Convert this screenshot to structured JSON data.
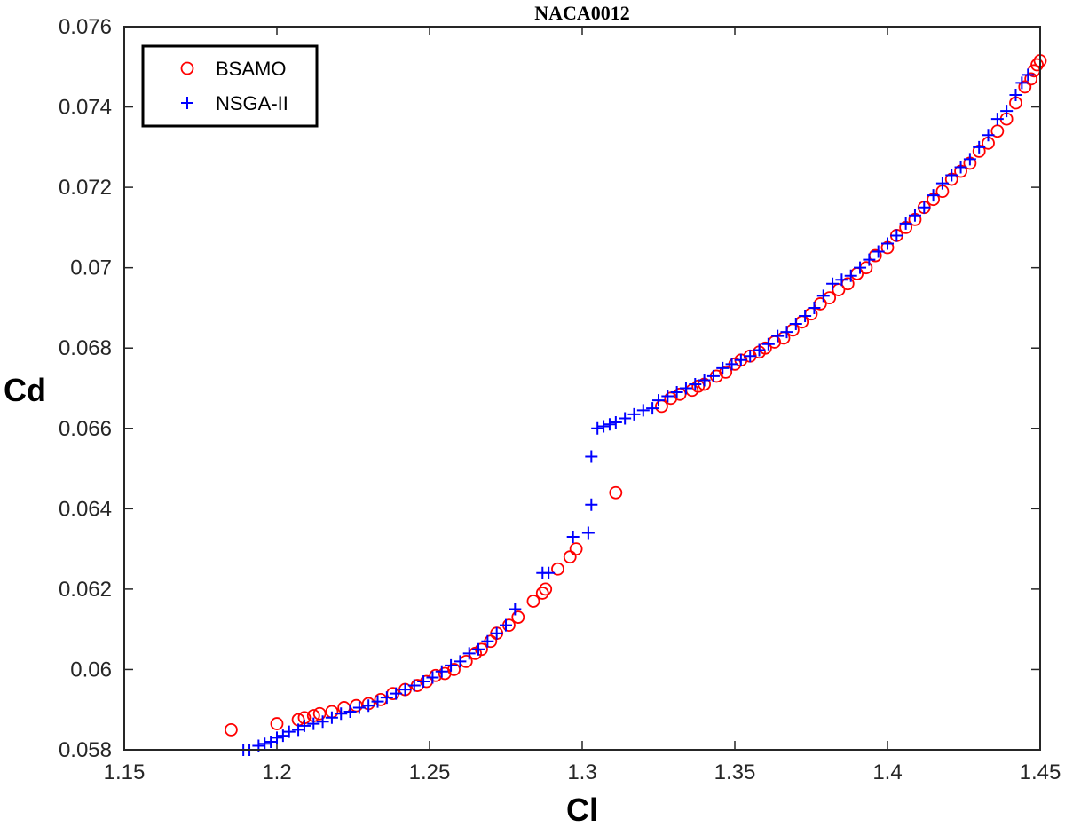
{
  "chart_data": {
    "type": "scatter",
    "title": "NACA0012",
    "xlabel": "Cl",
    "ylabel": "Cd",
    "xlim": [
      1.15,
      1.45
    ],
    "ylim": [
      0.058,
      0.076
    ],
    "xticks": [
      "1.15",
      "1.2",
      "1.25",
      "1.3",
      "1.35",
      "1.4",
      "1.45"
    ],
    "yticks": [
      "0.058",
      "0.06",
      "0.062",
      "0.064",
      "0.066",
      "0.068",
      "0.07",
      "0.072",
      "0.074",
      "0.076"
    ],
    "grid": false,
    "legend_position": "top-left",
    "series": [
      {
        "name": "BSAMO",
        "marker": "circle",
        "color": "#ff0000",
        "points": [
          [
            1.185,
            0.0585
          ],
          [
            1.2,
            0.05865
          ],
          [
            1.207,
            0.05875
          ],
          [
            1.209,
            0.0588
          ],
          [
            1.212,
            0.05885
          ],
          [
            1.214,
            0.0589
          ],
          [
            1.218,
            0.05895
          ],
          [
            1.222,
            0.05905
          ],
          [
            1.226,
            0.0591
          ],
          [
            1.23,
            0.05915
          ],
          [
            1.234,
            0.05925
          ],
          [
            1.238,
            0.0594
          ],
          [
            1.242,
            0.0595
          ],
          [
            1.246,
            0.0596
          ],
          [
            1.249,
            0.0597
          ],
          [
            1.252,
            0.05985
          ],
          [
            1.255,
            0.0599
          ],
          [
            1.258,
            0.06
          ],
          [
            1.262,
            0.0602
          ],
          [
            1.265,
            0.0604
          ],
          [
            1.267,
            0.0605
          ],
          [
            1.27,
            0.0607
          ],
          [
            1.272,
            0.0609
          ],
          [
            1.276,
            0.0611
          ],
          [
            1.279,
            0.0613
          ],
          [
            1.284,
            0.0617
          ],
          [
            1.287,
            0.0619
          ],
          [
            1.288,
            0.062
          ],
          [
            1.292,
            0.0625
          ],
          [
            1.296,
            0.0628
          ],
          [
            1.298,
            0.063
          ],
          [
            1.311,
            0.0644
          ],
          [
            1.326,
            0.06655
          ],
          [
            1.329,
            0.06675
          ],
          [
            1.332,
            0.06685
          ],
          [
            1.336,
            0.06695
          ],
          [
            1.338,
            0.06705
          ],
          [
            1.34,
            0.0671
          ],
          [
            1.344,
            0.0673
          ],
          [
            1.347,
            0.0674
          ],
          [
            1.35,
            0.0676
          ],
          [
            1.352,
            0.0677
          ],
          [
            1.355,
            0.0678
          ],
          [
            1.358,
            0.0679
          ],
          [
            1.36,
            0.068
          ],
          [
            1.363,
            0.06815
          ],
          [
            1.366,
            0.06825
          ],
          [
            1.369,
            0.06845
          ],
          [
            1.372,
            0.06865
          ],
          [
            1.375,
            0.06885
          ],
          [
            1.378,
            0.0691
          ],
          [
            1.381,
            0.06925
          ],
          [
            1.384,
            0.06945
          ],
          [
            1.387,
            0.0696
          ],
          [
            1.39,
            0.06985
          ],
          [
            1.393,
            0.07
          ],
          [
            1.396,
            0.0703
          ],
          [
            1.4,
            0.0705
          ],
          [
            1.403,
            0.0708
          ],
          [
            1.406,
            0.071
          ],
          [
            1.409,
            0.0712
          ],
          [
            1.412,
            0.0715
          ],
          [
            1.415,
            0.0717
          ],
          [
            1.418,
            0.0719
          ],
          [
            1.421,
            0.0722
          ],
          [
            1.424,
            0.0724
          ],
          [
            1.427,
            0.0726
          ],
          [
            1.43,
            0.0729
          ],
          [
            1.433,
            0.0731
          ],
          [
            1.436,
            0.0734
          ],
          [
            1.439,
            0.0737
          ],
          [
            1.442,
            0.0741
          ],
          [
            1.445,
            0.0745
          ],
          [
            1.447,
            0.0747
          ],
          [
            1.448,
            0.0749
          ],
          [
            1.449,
            0.07505
          ],
          [
            1.45,
            0.07515
          ]
        ]
      },
      {
        "name": "NSGA-II",
        "marker": "plus",
        "color": "#0000ff",
        "points": [
          [
            1.189,
            0.058
          ],
          [
            1.191,
            0.058
          ],
          [
            1.194,
            0.0581
          ],
          [
            1.196,
            0.05815
          ],
          [
            1.198,
            0.0582
          ],
          [
            1.2,
            0.0583
          ],
          [
            1.202,
            0.05835
          ],
          [
            1.204,
            0.05845
          ],
          [
            1.207,
            0.0585
          ],
          [
            1.209,
            0.0586
          ],
          [
            1.212,
            0.05865
          ],
          [
            1.215,
            0.0587
          ],
          [
            1.218,
            0.0588
          ],
          [
            1.221,
            0.0589
          ],
          [
            1.224,
            0.05895
          ],
          [
            1.227,
            0.05905
          ],
          [
            1.23,
            0.0591
          ],
          [
            1.233,
            0.0592
          ],
          [
            1.236,
            0.0593
          ],
          [
            1.239,
            0.0594
          ],
          [
            1.242,
            0.0595
          ],
          [
            1.245,
            0.0596
          ],
          [
            1.248,
            0.0597
          ],
          [
            1.251,
            0.0598
          ],
          [
            1.254,
            0.05995
          ],
          [
            1.257,
            0.0601
          ],
          [
            1.26,
            0.0602
          ],
          [
            1.263,
            0.0604
          ],
          [
            1.266,
            0.0605
          ],
          [
            1.269,
            0.0607
          ],
          [
            1.272,
            0.0609
          ],
          [
            1.275,
            0.0611
          ],
          [
            1.278,
            0.0615
          ],
          [
            1.287,
            0.0624
          ],
          [
            1.289,
            0.0624
          ],
          [
            1.297,
            0.0633
          ],
          [
            1.302,
            0.0634
          ],
          [
            1.303,
            0.0641
          ],
          [
            1.303,
            0.0653
          ],
          [
            1.305,
            0.066
          ],
          [
            1.307,
            0.06605
          ],
          [
            1.309,
            0.0661
          ],
          [
            1.311,
            0.06615
          ],
          [
            1.314,
            0.06625
          ],
          [
            1.317,
            0.06635
          ],
          [
            1.32,
            0.06645
          ],
          [
            1.323,
            0.0665
          ],
          [
            1.325,
            0.0667
          ],
          [
            1.328,
            0.0668
          ],
          [
            1.331,
            0.0669
          ],
          [
            1.334,
            0.067
          ],
          [
            1.337,
            0.0671
          ],
          [
            1.34,
            0.0672
          ],
          [
            1.343,
            0.0673
          ],
          [
            1.346,
            0.0675
          ],
          [
            1.349,
            0.0676
          ],
          [
            1.352,
            0.0677
          ],
          [
            1.355,
            0.0678
          ],
          [
            1.358,
            0.06795
          ],
          [
            1.361,
            0.0681
          ],
          [
            1.364,
            0.0683
          ],
          [
            1.367,
            0.0684
          ],
          [
            1.37,
            0.0686
          ],
          [
            1.373,
            0.0688
          ],
          [
            1.376,
            0.069
          ],
          [
            1.379,
            0.0693
          ],
          [
            1.382,
            0.0696
          ],
          [
            1.385,
            0.0697
          ],
          [
            1.388,
            0.0698
          ],
          [
            1.391,
            0.07
          ],
          [
            1.394,
            0.0702
          ],
          [
            1.397,
            0.0704
          ],
          [
            1.4,
            0.0706
          ],
          [
            1.403,
            0.0708
          ],
          [
            1.406,
            0.0711
          ],
          [
            1.409,
            0.0713
          ],
          [
            1.412,
            0.0715
          ],
          [
            1.415,
            0.0718
          ],
          [
            1.418,
            0.0721
          ],
          [
            1.421,
            0.0723
          ],
          [
            1.424,
            0.0725
          ],
          [
            1.427,
            0.0727
          ],
          [
            1.43,
            0.073
          ],
          [
            1.433,
            0.0733
          ],
          [
            1.436,
            0.0737
          ],
          [
            1.439,
            0.0739
          ],
          [
            1.442,
            0.0743
          ],
          [
            1.444,
            0.0746
          ],
          [
            1.446,
            0.0748
          ]
        ]
      }
    ]
  }
}
